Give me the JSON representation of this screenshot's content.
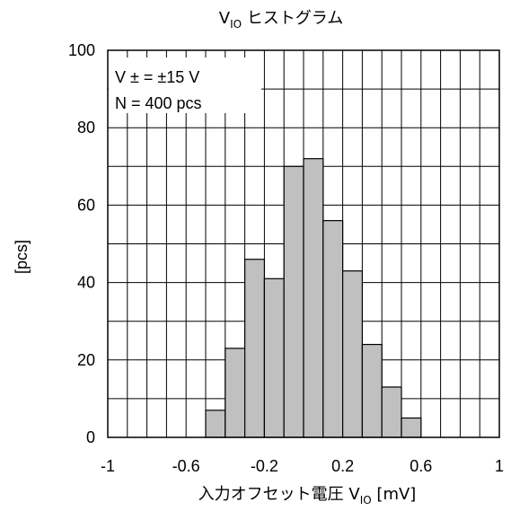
{
  "chart_data": {
    "type": "bar",
    "title_main": "V",
    "title_sub": "IO",
    "title_rest": " ヒストグラム",
    "xlabel_main": "入力オフセット電圧 V",
    "xlabel_sub": "IO",
    "xlabel_rest": " [mV]",
    "ylabel": "[pcs]",
    "xlim": [
      -1,
      1
    ],
    "ylim": [
      0,
      100
    ],
    "bin_width": 0.1,
    "bin_starts": [
      -0.5,
      -0.4,
      -0.3,
      -0.2,
      -0.1,
      0.0,
      0.1,
      0.2,
      0.3,
      0.4,
      0.5
    ],
    "values": [
      7,
      23,
      46,
      41,
      70,
      72,
      56,
      43,
      24,
      13,
      5
    ],
    "x_ticks": [
      "-1",
      "-0.6",
      "-0.2",
      "0.2",
      "0.6",
      "1"
    ],
    "x_tick_values": [
      -1,
      -0.6,
      -0.2,
      0.2,
      0.6,
      1
    ],
    "y_ticks": [
      "0",
      "20",
      "40",
      "60",
      "80",
      "100"
    ],
    "y_tick_values": [
      0,
      20,
      40,
      60,
      80,
      100
    ],
    "grid": true,
    "bar_color": "#c0c0c0",
    "annotation_line1": "V ± = ±15 V",
    "annotation_line2": "N = 400 pcs",
    "legend_position": "top-left"
  }
}
